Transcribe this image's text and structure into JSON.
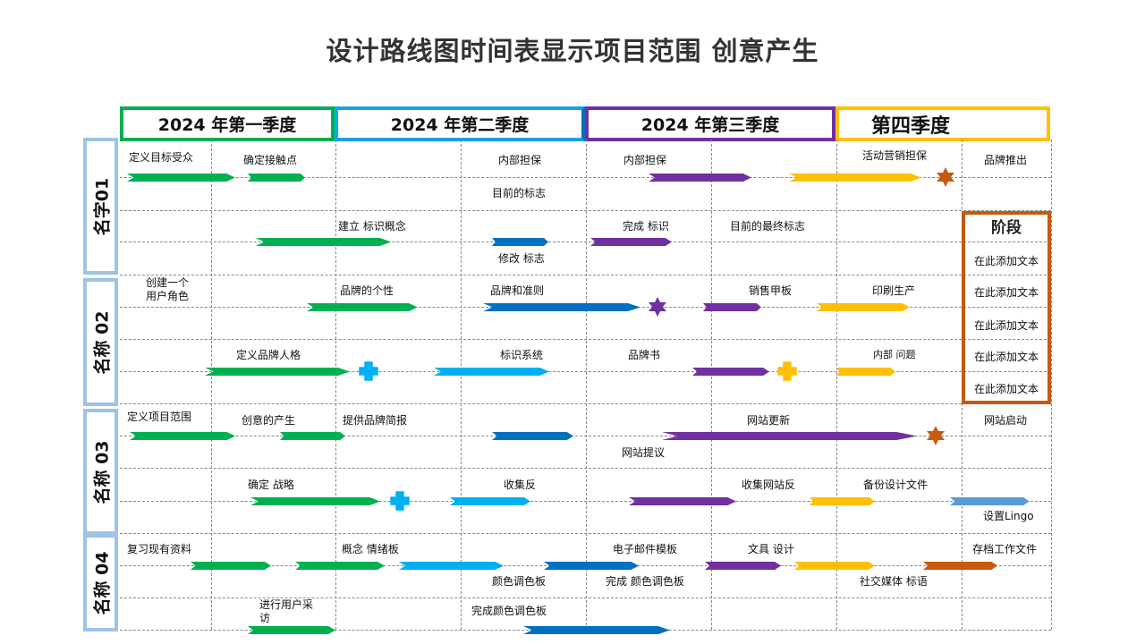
{
  "title": "设计路线图时间表显示项目范围 创意产生",
  "colors": {
    "green": "#00b050",
    "light_blue": "#00b0f0",
    "blue": "#0070c0",
    "purple": "#7030a0",
    "yellow": "#ffc000",
    "orange": "#c55a11",
    "steel_blue": "#5b9bd5",
    "row_label_border": "#9dc3e6"
  },
  "quarters": [
    {
      "label": "2024 年第一季度"
    },
    {
      "label": "2024 年第二季度"
    },
    {
      "label": "2024 年第三季度"
    },
    {
      "label": "第四季度"
    }
  ],
  "rows": [
    {
      "label": "名字01"
    },
    {
      "label": "名称 02"
    },
    {
      "label": "名称 03"
    },
    {
      "label": "名称 04"
    }
  ],
  "labels": {
    "r1": [
      "定义目标受众",
      "确定接触点",
      "内部担保",
      "目前的标志",
      "内部担保",
      "活动营销担保",
      "品牌推出"
    ],
    "r2": [
      "建立 标识概念",
      "修改 标志",
      "完成 标识",
      "目前的最终标志"
    ],
    "r3": [
      "创建一个\n用户角色",
      "品牌的个性",
      "品牌和准则",
      "销售甲板",
      "印刷生产"
    ],
    "r4": [
      "定义品牌人格",
      "标识系统",
      "品牌书",
      "内部 问题"
    ],
    "r5": [
      "定义项目范围",
      "创意的产生",
      "提供品牌简报",
      "网站更新",
      "网站提议",
      "网站启动"
    ],
    "r6": [
      "确定 战略",
      "收集反",
      "收集网站反",
      "备份设计文件",
      "设置Lingo"
    ],
    "r7": [
      "复习现有资料",
      "概念 情绪板",
      "颜色调色板",
      "电子邮件模板",
      "完成 颜色调色板",
      "文具 设计",
      "社交媒体 标语",
      "存档工作文件"
    ],
    "r8": [
      "进行用户采访",
      "完成颜色调色板"
    ]
  },
  "phase": {
    "title": "阶段",
    "items": [
      "在此添加文本",
      "在此添加文本",
      "在此添加文本",
      "在此添加文本",
      "在此添加文本"
    ]
  },
  "arrows": [
    {
      "row": 1,
      "color": "green"
    },
    {
      "row": 1,
      "color": "green"
    },
    {
      "row": 1,
      "color": "purple"
    },
    {
      "row": 1,
      "color": "yellow"
    },
    {
      "row": 2,
      "color": "green"
    },
    {
      "row": 2,
      "color": "blue"
    },
    {
      "row": 2,
      "color": "purple"
    },
    {
      "row": 3,
      "color": "green"
    },
    {
      "row": 3,
      "color": "blue"
    },
    {
      "row": 3,
      "color": "purple"
    },
    {
      "row": 3,
      "color": "yellow"
    },
    {
      "row": 4,
      "color": "green"
    },
    {
      "row": 4,
      "color": "light_blue"
    },
    {
      "row": 4,
      "color": "purple"
    },
    {
      "row": 4,
      "color": "yellow"
    },
    {
      "row": 5,
      "color": "green"
    },
    {
      "row": 5,
      "color": "green"
    },
    {
      "row": 5,
      "color": "blue"
    },
    {
      "row": 5,
      "color": "purple"
    },
    {
      "row": 6,
      "color": "green"
    },
    {
      "row": 6,
      "color": "light_blue"
    },
    {
      "row": 6,
      "color": "purple"
    },
    {
      "row": 6,
      "color": "yellow"
    },
    {
      "row": 6,
      "color": "steel_blue"
    },
    {
      "row": 7,
      "color": "green"
    },
    {
      "row": 7,
      "color": "green"
    },
    {
      "row": 7,
      "color": "light_blue"
    },
    {
      "row": 7,
      "color": "blue"
    },
    {
      "row": 7,
      "color": "purple"
    },
    {
      "row": 7,
      "color": "yellow"
    },
    {
      "row": 7,
      "color": "orange"
    },
    {
      "row": 8,
      "color": "green"
    },
    {
      "row": 8,
      "color": "blue"
    }
  ],
  "milestones": [
    {
      "row": 1,
      "shape": "star",
      "color": "orange"
    },
    {
      "row": 3,
      "shape": "star",
      "color": "purple"
    },
    {
      "row": 4,
      "shape": "cross",
      "color": "light_blue"
    },
    {
      "row": 4,
      "shape": "cross",
      "color": "yellow"
    },
    {
      "row": 5,
      "shape": "star",
      "color": "orange"
    },
    {
      "row": 6,
      "shape": "cross",
      "color": "light_blue"
    }
  ]
}
